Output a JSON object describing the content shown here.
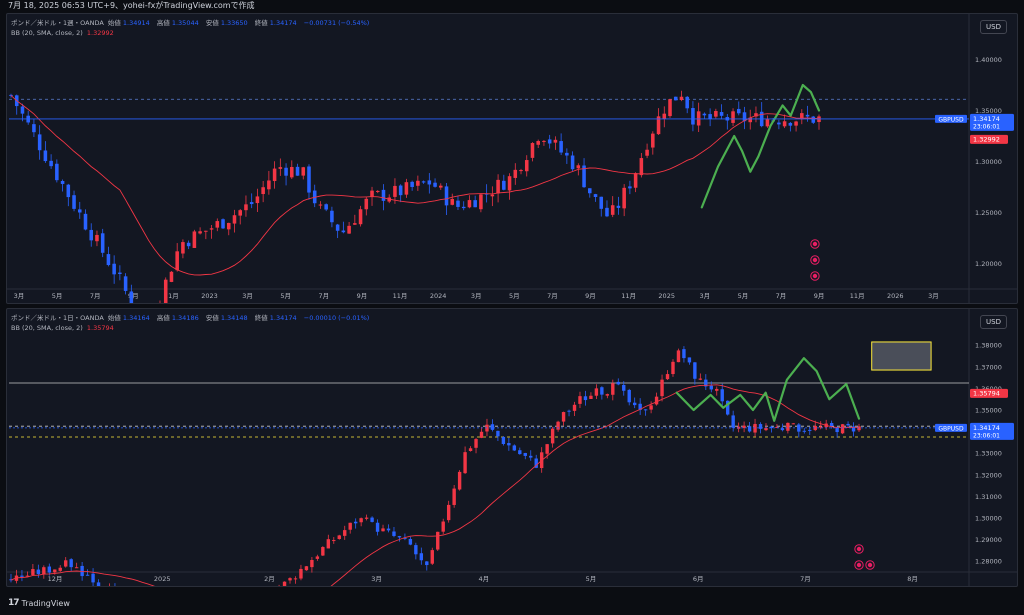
{
  "header": {
    "text": "7月 18, 2025 06:53 UTC+9、yohei-fxがTradingView.comで作成"
  },
  "colors": {
    "up": "#f23645",
    "down": "#2962ff",
    "bb": "#f23645",
    "wave": "#4caf50",
    "box": "#ffeb3b",
    "price": "#2962ff",
    "bg": "#131722"
  },
  "logo": {
    "mark": "17",
    "text": "TradingView"
  },
  "charts": [
    {
      "id": "weekly",
      "symbol": "ポンド／米ドル・1週・OANDA",
      "ohlc": [
        {
          "k": "始値",
          "v": "1.34914"
        },
        {
          "k": "高値",
          "v": "1.35044"
        },
        {
          "k": "安値",
          "v": "1.33650"
        },
        {
          "k": "終値",
          "v": "1.34174"
        }
      ],
      "change": "−0.00731 (−0.54%)",
      "bb_label": "BB (20, SMA, close, 2)",
      "bb_value": "1.32992",
      "currency": "USD",
      "price_ticks": [
        "1.40000",
        "1.35000",
        "1.30000",
        "1.25000",
        "1.20000"
      ],
      "time_ticks": [
        "3月",
        "5月",
        "7月",
        "9月",
        "11月",
        "2023",
        "3月",
        "5月",
        "7月",
        "9月",
        "11月",
        "2024",
        "3月",
        "5月",
        "7月",
        "9月",
        "11月",
        "2025",
        "3月",
        "5月",
        "7月",
        "9月",
        "11月",
        "2026",
        "3月"
      ],
      "last_label": {
        "symbol": "GBPUSD",
        "price": "1.34174",
        "countdown": "23:06:01"
      },
      "bb_tag": "1.32992",
      "ylim": [
        1.175,
        1.425
      ],
      "hlines": [
        1.361
      ]
    },
    {
      "id": "daily",
      "symbol": "ポンド／米ドル・1日・OANDA",
      "ohlc": [
        {
          "k": "始値",
          "v": "1.34164"
        },
        {
          "k": "高値",
          "v": "1.34186"
        },
        {
          "k": "安値",
          "v": "1.34148"
        },
        {
          "k": "終値",
          "v": "1.34174"
        }
      ],
      "change": "−0.00010 (−0.01%)",
      "bb_label": "BB (20, SMA, close, 2)",
      "bb_value": "1.35794",
      "currency": "USD",
      "price_ticks": [
        "1.38000",
        "1.37000",
        "1.36000",
        "1.35000",
        "1.34000",
        "1.33000",
        "1.32000",
        "1.31000",
        "1.30000",
        "1.29000",
        "1.28000"
      ],
      "time_ticks": [
        "12月",
        "2025",
        "2月",
        "3月",
        "4月",
        "5月",
        "6月",
        "7月",
        "8月"
      ],
      "last_label": {
        "symbol": "GBPUSD",
        "price": "1.34174",
        "countdown": "23:06:01"
      },
      "bb_tag": "1.35794",
      "ylim": [
        1.275,
        1.3875
      ],
      "hlines": [
        1.3625,
        1.3425,
        1.3375
      ]
    }
  ]
}
